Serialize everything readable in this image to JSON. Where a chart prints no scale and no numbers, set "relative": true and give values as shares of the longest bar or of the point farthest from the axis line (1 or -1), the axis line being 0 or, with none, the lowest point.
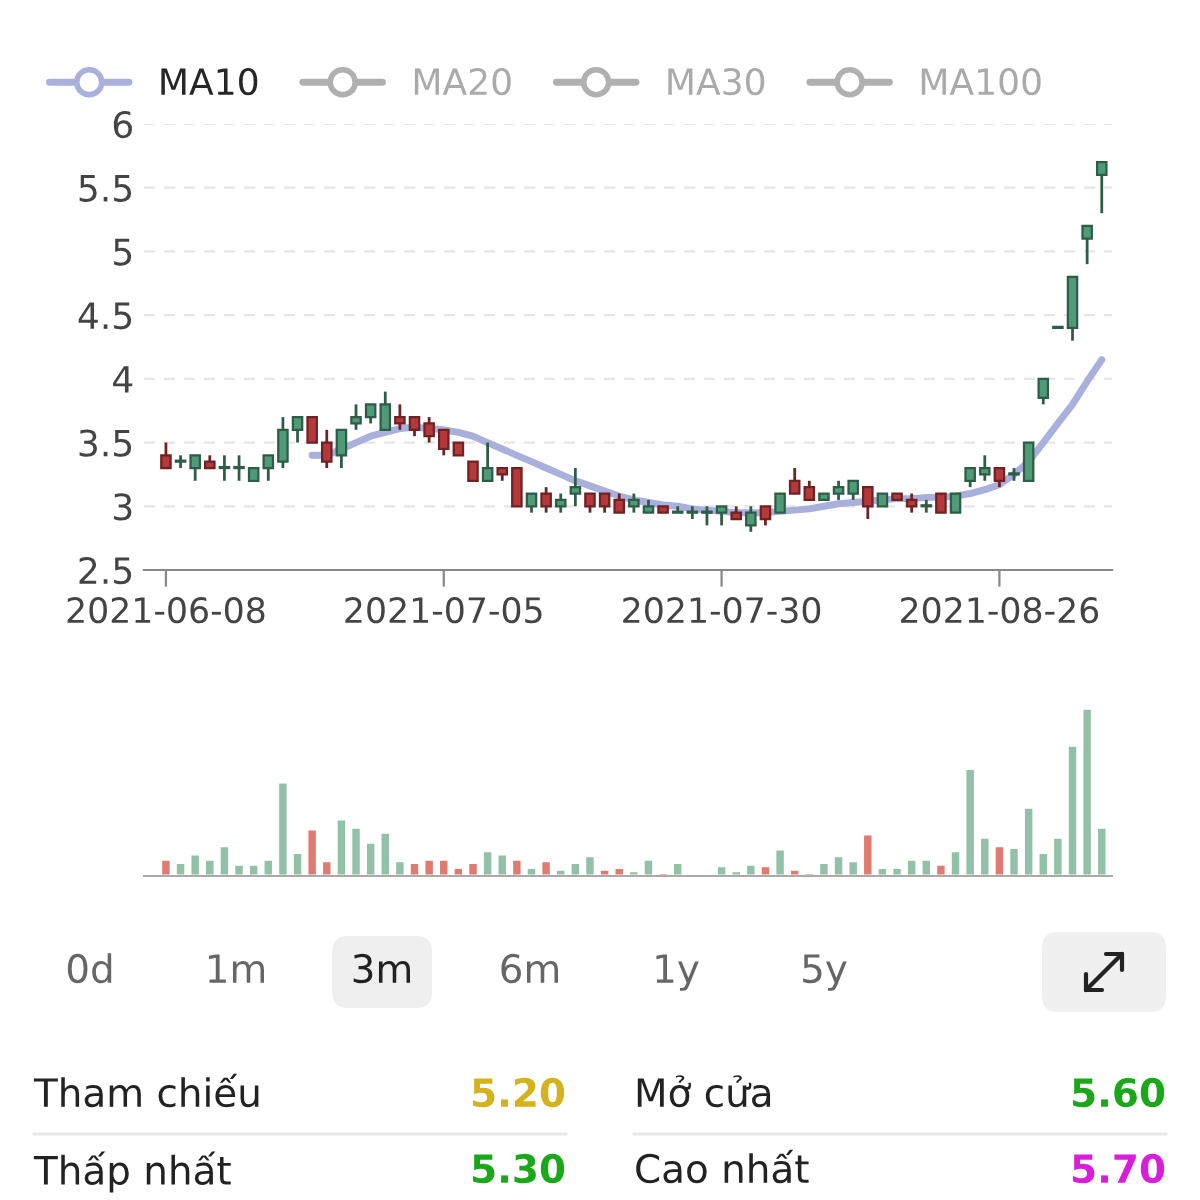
{
  "chart_data": [
    {
      "type": "candlestick",
      "categories": [
        "2021-06-08",
        null,
        null,
        null,
        null,
        null,
        null,
        null,
        null,
        null,
        null,
        null,
        null,
        null,
        null,
        null,
        null,
        null,
        null,
        "2021-07-05",
        null,
        null,
        null,
        null,
        null,
        null,
        null,
        null,
        null,
        null,
        null,
        null,
        null,
        null,
        null,
        null,
        null,
        null,
        "2021-07-30",
        null,
        null,
        null,
        null,
        null,
        null,
        null,
        null,
        null,
        null,
        null,
        null,
        null,
        null,
        null,
        null,
        null,
        null,
        "2021-08-26",
        null,
        null,
        null,
        null,
        null,
        null,
        null
      ],
      "ohlc": [
        [
          3.4,
          3.5,
          3.3,
          3.3
        ],
        [
          3.35,
          3.4,
          3.3,
          3.35
        ],
        [
          3.3,
          3.4,
          3.2,
          3.4
        ],
        [
          3.35,
          3.4,
          3.3,
          3.3
        ],
        [
          3.3,
          3.4,
          3.2,
          3.3
        ],
        [
          3.3,
          3.4,
          3.2,
          3.3
        ],
        [
          3.2,
          3.3,
          3.2,
          3.3
        ],
        [
          3.3,
          3.4,
          3.2,
          3.4
        ],
        [
          3.35,
          3.7,
          3.3,
          3.6
        ],
        [
          3.6,
          3.7,
          3.5,
          3.7
        ],
        [
          3.7,
          3.7,
          3.5,
          3.5
        ],
        [
          3.5,
          3.6,
          3.3,
          3.35
        ],
        [
          3.4,
          3.6,
          3.3,
          3.6
        ],
        [
          3.65,
          3.8,
          3.6,
          3.7
        ],
        [
          3.7,
          3.8,
          3.65,
          3.8
        ],
        [
          3.6,
          3.9,
          3.6,
          3.8
        ],
        [
          3.7,
          3.8,
          3.6,
          3.65
        ],
        [
          3.7,
          3.7,
          3.55,
          3.6
        ],
        [
          3.65,
          3.7,
          3.5,
          3.55
        ],
        [
          3.6,
          3.6,
          3.4,
          3.45
        ],
        [
          3.5,
          3.5,
          3.4,
          3.4
        ],
        [
          3.35,
          3.35,
          3.2,
          3.2
        ],
        [
          3.2,
          3.5,
          3.2,
          3.3
        ],
        [
          3.3,
          3.3,
          3.2,
          3.25
        ],
        [
          3.3,
          3.3,
          3.0,
          3.0
        ],
        [
          3.0,
          3.1,
          2.95,
          3.1
        ],
        [
          3.1,
          3.15,
          2.95,
          3.0
        ],
        [
          3.0,
          3.1,
          2.95,
          3.05
        ],
        [
          3.1,
          3.3,
          3.0,
          3.15
        ],
        [
          3.1,
          3.1,
          2.95,
          3.0
        ],
        [
          3.1,
          3.1,
          2.95,
          3.0
        ],
        [
          3.05,
          3.1,
          2.95,
          2.95
        ],
        [
          3.0,
          3.1,
          2.95,
          3.05
        ],
        [
          2.95,
          3.05,
          2.95,
          3.0
        ],
        [
          3.0,
          3.0,
          2.95,
          2.95
        ],
        [
          2.95,
          3.0,
          2.95,
          2.95
        ],
        [
          2.95,
          3.0,
          2.9,
          2.95
        ],
        [
          2.95,
          3.0,
          2.85,
          2.95
        ],
        [
          2.95,
          3.0,
          2.85,
          3.0
        ],
        [
          2.95,
          3.0,
          2.9,
          2.9
        ],
        [
          2.85,
          3.0,
          2.8,
          2.95
        ],
        [
          3.0,
          3.0,
          2.85,
          2.9
        ],
        [
          2.95,
          3.1,
          2.95,
          3.1
        ],
        [
          3.2,
          3.3,
          3.1,
          3.1
        ],
        [
          3.15,
          3.2,
          3.05,
          3.05
        ],
        [
          3.05,
          3.1,
          3.05,
          3.1
        ],
        [
          3.1,
          3.2,
          3.05,
          3.15
        ],
        [
          3.1,
          3.2,
          3.05,
          3.2
        ],
        [
          3.15,
          3.15,
          2.9,
          3.0
        ],
        [
          3.0,
          3.1,
          3.0,
          3.1
        ],
        [
          3.1,
          3.1,
          3.05,
          3.05
        ],
        [
          3.05,
          3.1,
          2.95,
          3.0
        ],
        [
          3.0,
          3.05,
          2.95,
          3.0
        ],
        [
          3.1,
          3.1,
          2.95,
          2.95
        ],
        [
          2.95,
          3.1,
          2.95,
          3.1
        ],
        [
          3.2,
          3.3,
          3.15,
          3.3
        ],
        [
          3.25,
          3.4,
          3.2,
          3.3
        ],
        [
          3.3,
          3.3,
          3.15,
          3.2
        ],
        [
          3.25,
          3.3,
          3.2,
          3.25
        ],
        [
          3.2,
          3.5,
          3.2,
          3.5
        ],
        [
          3.85,
          4.0,
          3.8,
          4.0
        ],
        [
          4.4,
          4.4,
          4.4,
          4.4
        ],
        [
          4.4,
          4.8,
          4.3,
          4.8
        ],
        [
          5.1,
          5.2,
          4.9,
          5.2
        ],
        [
          5.6,
          5.7,
          5.3,
          5.7
        ]
      ],
      "colors": [
        "#b5393a",
        "#4f9a77",
        "#4f9a77",
        "#b5393a",
        "#4f9a77",
        "#4f9a77",
        "#4f9a77",
        "#4f9a77",
        "#4f9a77",
        "#4f9a77",
        "#b5393a",
        "#b5393a",
        "#4f9a77",
        "#4f9a77",
        "#4f9a77",
        "#4f9a77",
        "#b5393a",
        "#b5393a",
        "#b5393a",
        "#b5393a",
        "#b5393a",
        "#b5393a",
        "#4f9a77",
        "#b5393a",
        "#b5393a",
        "#4f9a77",
        "#b5393a",
        "#4f9a77",
        "#4f9a77",
        "#b5393a",
        "#b5393a",
        "#b5393a",
        "#4f9a77",
        "#4f9a77",
        "#b5393a",
        "#4f9a77",
        "#4f9a77",
        "#4f9a77",
        "#4f9a77",
        "#b5393a",
        "#4f9a77",
        "#b5393a",
        "#4f9a77",
        "#b5393a",
        "#b5393a",
        "#4f9a77",
        "#4f9a77",
        "#4f9a77",
        "#b5393a",
        "#4f9a77",
        "#b5393a",
        "#b5393a",
        "#4f9a77",
        "#b5393a",
        "#4f9a77",
        "#4f9a77",
        "#4f9a77",
        "#b5393a",
        "#4f9a77",
        "#4f9a77",
        "#4f9a77",
        "#4f9a77",
        "#4f9a77",
        "#4f9a77",
        "#4f9a77"
      ],
      "series": [
        {
          "name": "MA10",
          "type": "line",
          "color": "#a9b0dc",
          "values": [
            null,
            null,
            null,
            null,
            null,
            null,
            null,
            null,
            null,
            null,
            3.4,
            3.4,
            3.45,
            3.5,
            3.55,
            3.58,
            3.61,
            3.62,
            3.61,
            3.6,
            3.58,
            3.55,
            3.5,
            3.45,
            3.4,
            3.35,
            3.3,
            3.25,
            3.2,
            3.16,
            3.12,
            3.08,
            3.05,
            3.03,
            3.01,
            3.0,
            2.98,
            2.97,
            2.96,
            2.95,
            2.95,
            2.95,
            2.96,
            2.97,
            2.98,
            3.0,
            3.02,
            3.03,
            3.04,
            3.05,
            3.06,
            3.06,
            3.07,
            3.07,
            3.08,
            3.1,
            3.13,
            3.17,
            3.25,
            3.35,
            3.5,
            3.65,
            3.8,
            3.98,
            4.15
          ]
        },
        {
          "name": "MA20",
          "type": "line",
          "color": "#b0b0b0",
          "values": [
            null,
            null,
            null,
            null,
            null,
            null,
            null,
            null,
            null,
            null,
            null,
            null,
            null,
            null,
            null,
            null,
            null,
            null,
            null,
            null,
            null,
            null,
            null,
            null,
            null,
            null,
            null,
            null,
            null,
            null,
            null,
            null,
            null,
            null,
            null,
            null,
            null,
            null,
            null,
            null,
            null,
            null,
            null,
            null,
            null,
            null,
            null,
            null,
            null,
            null,
            null,
            null,
            null,
            null,
            null,
            null,
            null,
            null,
            null,
            null,
            null,
            null,
            null,
            null,
            null
          ]
        },
        {
          "name": "MA30",
          "type": "line",
          "color": "#b0b0b0",
          "values": [
            null,
            null,
            null,
            null,
            null,
            null,
            null,
            null,
            null,
            null,
            null,
            null,
            null,
            null,
            null,
            null,
            null,
            null,
            null,
            null,
            null,
            null,
            null,
            null,
            null,
            null,
            null,
            null,
            null,
            null,
            null,
            null,
            null,
            null,
            null,
            null,
            null,
            null,
            null,
            null,
            null,
            null,
            null,
            null,
            null,
            null,
            null,
            null,
            null,
            null,
            null,
            null,
            null,
            null,
            null,
            null,
            null,
            null,
            null,
            null,
            null,
            null,
            null,
            null,
            null
          ]
        },
        {
          "name": "MA100",
          "type": "line",
          "color": "#b0b0b0",
          "values": [
            null,
            null,
            null,
            null,
            null,
            null,
            null,
            null,
            null,
            null,
            null,
            null,
            null,
            null,
            null,
            null,
            null,
            null,
            null,
            null,
            null,
            null,
            null,
            null,
            null,
            null,
            null,
            null,
            null,
            null,
            null,
            null,
            null,
            null,
            null,
            null,
            null,
            null,
            null,
            null,
            null,
            null,
            null,
            null,
            null,
            null,
            null,
            null,
            null,
            null,
            null,
            null,
            null,
            null,
            null,
            null,
            null,
            null,
            null,
            null,
            null,
            null,
            null,
            null,
            null
          ]
        }
      ],
      "ylim": [
        2.5,
        6
      ],
      "yticks": [
        2.5,
        3,
        3.5,
        4,
        4.5,
        5,
        5.5,
        6
      ],
      "grid": "y",
      "legend": "top"
    },
    {
      "type": "bar",
      "relative": true,
      "categories": [
        null,
        null,
        null,
        null,
        null,
        null,
        null,
        null,
        null,
        null,
        null,
        null,
        null,
        null,
        null,
        null,
        null,
        null,
        null,
        null,
        null,
        null,
        null,
        null,
        null,
        null,
        null,
        null,
        null,
        null,
        null,
        null,
        null,
        null,
        null,
        null,
        null,
        null,
        null,
        null,
        null,
        null,
        null,
        null,
        null,
        null,
        null,
        null,
        null,
        null,
        null,
        null,
        null,
        null,
        null,
        null,
        null,
        null,
        null,
        null,
        null,
        null,
        null,
        null,
        null
      ],
      "values": [
        0.1,
        0.08,
        0.13,
        0.1,
        0.18,
        0.07,
        0.07,
        0.1,
        0.56,
        0.14,
        0.28,
        0.09,
        0.34,
        0.29,
        0.2,
        0.26,
        0.09,
        0.08,
        0.1,
        0.1,
        0.05,
        0.08,
        0.15,
        0.13,
        0.1,
        0.05,
        0.09,
        0.04,
        0.08,
        0.12,
        0.04,
        0.05,
        0.03,
        0.1,
        0.02,
        0.08,
        0.01,
        0.01,
        0.06,
        0.03,
        0.07,
        0.06,
        0.16,
        0.04,
        0.02,
        0.08,
        0.12,
        0.09,
        0.25,
        0.05,
        0.05,
        0.1,
        0.1,
        0.07,
        0.15,
        0.64,
        0.23,
        0.18,
        0.17,
        0.41,
        0.14,
        0.23,
        0.78,
        1,
        0.29
      ],
      "colors": [
        "#e07b72",
        "#92c1a8",
        "#92c1a8",
        "#92c1a8",
        "#92c1a8",
        "#92c1a8",
        "#92c1a8",
        "#92c1a8",
        "#92c1a8",
        "#92c1a8",
        "#e07b72",
        "#e07b72",
        "#92c1a8",
        "#92c1a8",
        "#92c1a8",
        "#92c1a8",
        "#92c1a8",
        "#e07b72",
        "#e07b72",
        "#e07b72",
        "#e07b72",
        "#e07b72",
        "#92c1a8",
        "#92c1a8",
        "#e07b72",
        "#92c1a8",
        "#e07b72",
        "#92c1a8",
        "#92c1a8",
        "#92c1a8",
        "#e07b72",
        "#e07b72",
        "#92c1a8",
        "#92c1a8",
        "#e07b72",
        "#92c1a8",
        "#92c1a8",
        "#92c1a8",
        "#92c1a8",
        "#92c1a8",
        "#92c1a8",
        "#e07b72",
        "#92c1a8",
        "#e07b72",
        "#e07b72",
        "#92c1a8",
        "#92c1a8",
        "#92c1a8",
        "#e07b72",
        "#92c1a8",
        "#92c1a8",
        "#92c1a8",
        "#92c1a8",
        "#e07b72",
        "#92c1a8",
        "#92c1a8",
        "#92c1a8",
        "#e07b72",
        "#92c1a8",
        "#92c1a8",
        "#92c1a8",
        "#92c1a8",
        "#92c1a8",
        "#92c1a8",
        "#92c1a8"
      ]
    },
    {
      "type": "other",
      "annotations": [
        "0d",
        "1m",
        "3m",
        "6m",
        "1y",
        "5y",
        "Tham chiếu",
        "5.20",
        "Mở cửa",
        "5.60",
        "Thấp nhất",
        "5.30",
        "Cao nhất",
        "5.70"
      ]
    }
  ]
}
